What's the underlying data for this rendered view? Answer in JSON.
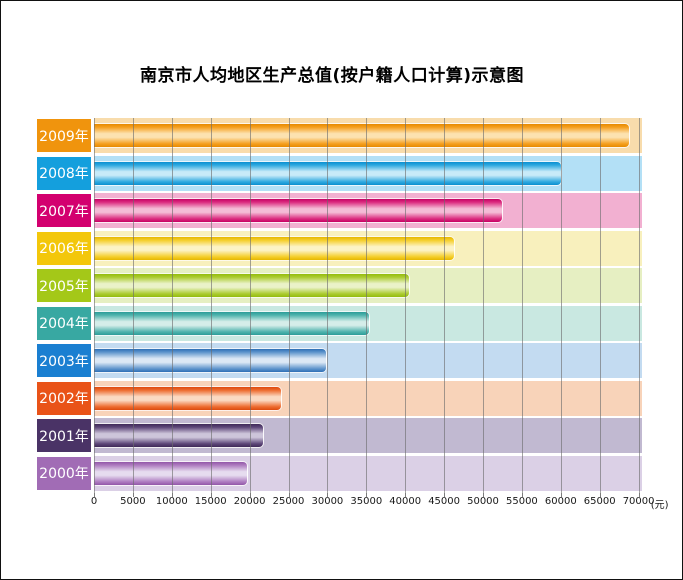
{
  "title": "南京市人均地区生产总值(按户籍人口计算)示意图",
  "chart_data": {
    "type": "bar",
    "orientation": "horizontal",
    "title": "南京市人均地区生产总值(按户籍人口计算)示意图",
    "unit": "(元)",
    "xlabel": "",
    "ylabel": "",
    "xlim": [
      0,
      70000
    ],
    "grid": true,
    "legend": "none",
    "x_ticks": [
      0,
      5000,
      10000,
      15000,
      20000,
      25000,
      30000,
      35000,
      40000,
      45000,
      50000,
      55000,
      60000,
      65000,
      70000
    ],
    "categories": [
      "2009年",
      "2008年",
      "2007年",
      "2006年",
      "2005年",
      "2004年",
      "2003年",
      "2002年",
      "2001年",
      "2000年"
    ],
    "values": [
      68900,
      60200,
      52600,
      46400,
      40600,
      35500,
      29900,
      24200,
      21900,
      19800
    ],
    "rows": [
      {
        "label": "2009年",
        "value": 68900,
        "block": "#F0940D",
        "band": "#F8DCAC",
        "bar_dark": "#E68A00",
        "bar_base": "#F59F1E",
        "bar_light": "#FCE2B0"
      },
      {
        "label": "2008年",
        "value": 60200,
        "block": "#149FDD",
        "band": "#B3E0F6",
        "bar_dark": "#0A8FD0",
        "bar_base": "#2FA9E0",
        "bar_light": "#C8EAF8"
      },
      {
        "label": "2007年",
        "value": 52600,
        "block": "#D3006F",
        "band": "#F2B0D1",
        "bar_dark": "#C60063",
        "bar_base": "#DB2C7F",
        "bar_light": "#F4BCD6"
      },
      {
        "label": "2006年",
        "value": 46400,
        "block": "#F3C70B",
        "band": "#F8F0BD",
        "bar_dark": "#E6B800",
        "bar_base": "#F5CE2A",
        "bar_light": "#FCF3C5"
      },
      {
        "label": "2005年",
        "value": 40600,
        "block": "#A4C818",
        "band": "#E6EFC2",
        "bar_dark": "#94BC0D",
        "bar_base": "#ABCB30",
        "bar_light": "#EAF2C8"
      },
      {
        "label": "2004年",
        "value": 35500,
        "block": "#38A8A2",
        "band": "#C9E8E1",
        "bar_dark": "#2B9C98",
        "bar_base": "#4FB3AD",
        "bar_light": "#D5EDE9"
      },
      {
        "label": "2003年",
        "value": 29900,
        "block": "#1A7FD1",
        "band": "#C3DBF1",
        "bar_dark": "#2E6FB5",
        "bar_base": "#5E94CC",
        "bar_light": "#DCE8F5"
      },
      {
        "label": "2002年",
        "value": 24200,
        "block": "#E95318",
        "band": "#F8D3B9",
        "bar_dark": "#DD4A0E",
        "bar_base": "#ED6B2F",
        "bar_light": "#FAD9C2"
      },
      {
        "label": "2001年",
        "value": 21900,
        "block": "#4A3366",
        "band": "#C1B9D1",
        "bar_dark": "#3F2A58",
        "bar_base": "#5D4678",
        "bar_light": "#CDC5DA"
      },
      {
        "label": "2000年",
        "value": 19800,
        "block": "#A16CB5",
        "band": "#DBD0E6",
        "bar_dark": "#9257A8",
        "bar_base": "#AE7CC0",
        "bar_light": "#E6DCEF"
      }
    ]
  }
}
